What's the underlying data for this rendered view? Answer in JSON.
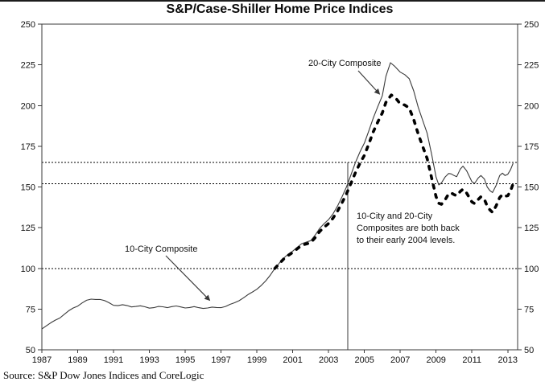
{
  "title": "S&P/Case-Shiller Home Price Indices",
  "source": "Source: S&P Dow Jones Indices and CoreLogic",
  "annotations": {
    "series_label_20": "20-City Composite",
    "series_label_10": "10-City Composite",
    "callout_lines": [
      "10-City and 20-City",
      "Composites are both back",
      "to their early 2004 levels."
    ]
  },
  "colors": {
    "line": "#000000",
    "axis": "#3a3a3a",
    "background": "#ffffff"
  },
  "chart_data": {
    "type": "line",
    "title": "S&P/Case-Shiller Home Price Indices",
    "xlabel": "",
    "ylabel": "",
    "grid": false,
    "legend_position": "annotated-arrows",
    "xlim": [
      1987,
      2013.55
    ],
    "ylim": [
      50,
      250
    ],
    "yticks": [
      50,
      75,
      100,
      125,
      150,
      175,
      200,
      225,
      250
    ],
    "xticks": [
      1987,
      1989,
      1991,
      1993,
      1995,
      1997,
      1999,
      2001,
      2003,
      2005,
      2007,
      2009,
      2011,
      2013
    ],
    "ref_lines_y": [
      165,
      152,
      100
    ],
    "marker": {
      "x": 2004.08,
      "top_value": 165
    },
    "series": [
      {
        "name": "10-City Composite",
        "style": "thin-solid",
        "points": [
          [
            1987.0,
            62.8
          ],
          [
            1987.25,
            64.7
          ],
          [
            1987.5,
            66.6
          ],
          [
            1987.75,
            68.2
          ],
          [
            1988.0,
            69.5
          ],
          [
            1988.25,
            71.8
          ],
          [
            1988.5,
            74.0
          ],
          [
            1988.75,
            75.7
          ],
          [
            1989.0,
            76.8
          ],
          [
            1989.25,
            78.8
          ],
          [
            1989.5,
            80.4
          ],
          [
            1989.75,
            81.1
          ],
          [
            1990.0,
            80.9
          ],
          [
            1990.25,
            80.9
          ],
          [
            1990.5,
            80.2
          ],
          [
            1990.75,
            78.9
          ],
          [
            1991.0,
            77.3
          ],
          [
            1991.25,
            77.1
          ],
          [
            1991.5,
            77.7
          ],
          [
            1991.75,
            77.2
          ],
          [
            1992.0,
            76.3
          ],
          [
            1992.25,
            76.6
          ],
          [
            1992.5,
            77.0
          ],
          [
            1992.75,
            76.4
          ],
          [
            1993.0,
            75.6
          ],
          [
            1993.25,
            75.9
          ],
          [
            1993.5,
            76.6
          ],
          [
            1993.75,
            76.4
          ],
          [
            1994.0,
            75.9
          ],
          [
            1994.25,
            76.5
          ],
          [
            1994.5,
            76.9
          ],
          [
            1994.75,
            76.3
          ],
          [
            1995.0,
            75.7
          ],
          [
            1995.25,
            76.0
          ],
          [
            1995.5,
            76.5
          ],
          [
            1995.75,
            75.9
          ],
          [
            1996.0,
            75.4
          ],
          [
            1996.25,
            75.7
          ],
          [
            1996.5,
            76.2
          ],
          [
            1996.75,
            76.0
          ],
          [
            1997.0,
            75.9
          ],
          [
            1997.25,
            76.6
          ],
          [
            1997.5,
            77.9
          ],
          [
            1997.75,
            78.9
          ],
          [
            1998.0,
            80.1
          ],
          [
            1998.25,
            81.9
          ],
          [
            1998.5,
            83.9
          ],
          [
            1998.75,
            85.5
          ],
          [
            1999.0,
            87.2
          ],
          [
            1999.25,
            89.6
          ],
          [
            1999.5,
            92.4
          ],
          [
            1999.75,
            95.9
          ],
          [
            2000.0,
            100.0
          ],
          [
            2000.25,
            103.2
          ],
          [
            2000.5,
            106.3
          ],
          [
            2000.75,
            108.8
          ],
          [
            2001.0,
            110.6
          ],
          [
            2001.25,
            112.9
          ],
          [
            2001.5,
            115.2
          ],
          [
            2001.75,
            116.1
          ],
          [
            2002.0,
            117.0
          ],
          [
            2002.25,
            120.4
          ],
          [
            2002.5,
            124.5
          ],
          [
            2002.75,
            127.5
          ],
          [
            2003.0,
            130.0
          ],
          [
            2003.25,
            133.5
          ],
          [
            2003.5,
            138.3
          ],
          [
            2003.75,
            144.0
          ],
          [
            2004.0,
            150.0
          ],
          [
            2004.25,
            157.5
          ],
          [
            2004.5,
            165.0
          ],
          [
            2004.75,
            171.5
          ],
          [
            2005.0,
            177.0
          ],
          [
            2005.25,
            184.5
          ],
          [
            2005.5,
            192.5
          ],
          [
            2005.75,
            199.5
          ],
          [
            2006.0,
            206.0
          ],
          [
            2006.2,
            218.0
          ],
          [
            2006.45,
            226.3
          ],
          [
            2006.7,
            224.0
          ],
          [
            2007.0,
            220.5
          ],
          [
            2007.25,
            219.0
          ],
          [
            2007.5,
            216.5
          ],
          [
            2007.75,
            209.0
          ],
          [
            2008.0,
            199.0
          ],
          [
            2008.25,
            191.0
          ],
          [
            2008.5,
            183.0
          ],
          [
            2008.75,
            170.0
          ],
          [
            2009.0,
            156.0
          ],
          [
            2009.15,
            151.3
          ],
          [
            2009.3,
            152.5
          ],
          [
            2009.5,
            156.0
          ],
          [
            2009.7,
            158.3
          ],
          [
            2009.85,
            158.0
          ],
          [
            2010.0,
            157.0
          ],
          [
            2010.15,
            156.3
          ],
          [
            2010.35,
            161.0
          ],
          [
            2010.5,
            162.8
          ],
          [
            2010.7,
            160.0
          ],
          [
            2011.0,
            153.2
          ],
          [
            2011.15,
            152.2
          ],
          [
            2011.35,
            155.5
          ],
          [
            2011.5,
            157.0
          ],
          [
            2011.7,
            154.8
          ],
          [
            2011.85,
            150.0
          ],
          [
            2012.0,
            147.8
          ],
          [
            2012.15,
            146.6
          ],
          [
            2012.35,
            151.0
          ],
          [
            2012.55,
            157.0
          ],
          [
            2012.7,
            158.5
          ],
          [
            2012.85,
            157.0
          ],
          [
            2013.0,
            157.8
          ],
          [
            2013.15,
            160.5
          ],
          [
            2013.3,
            164.5
          ]
        ]
      },
      {
        "name": "20-City Composite",
        "style": "thick-dashed",
        "points": [
          [
            2000.0,
            100.0
          ],
          [
            2000.25,
            102.9
          ],
          [
            2000.5,
            105.8
          ],
          [
            2000.75,
            108.0
          ],
          [
            2001.0,
            109.8
          ],
          [
            2001.25,
            112.0
          ],
          [
            2001.5,
            114.2
          ],
          [
            2001.75,
            115.0
          ],
          [
            2002.0,
            115.8
          ],
          [
            2002.25,
            118.9
          ],
          [
            2002.5,
            122.6
          ],
          [
            2002.75,
            125.3
          ],
          [
            2003.0,
            127.6
          ],
          [
            2003.25,
            130.9
          ],
          [
            2003.5,
            135.2
          ],
          [
            2003.75,
            140.3
          ],
          [
            2004.0,
            145.8
          ],
          [
            2004.25,
            152.3
          ],
          [
            2004.5,
            158.8
          ],
          [
            2004.75,
            164.5
          ],
          [
            2005.0,
            169.5
          ],
          [
            2005.25,
            176.5
          ],
          [
            2005.5,
            184.0
          ],
          [
            2005.75,
            190.0
          ],
          [
            2006.0,
            195.5
          ],
          [
            2006.2,
            202.0
          ],
          [
            2006.5,
            206.5
          ],
          [
            2006.75,
            204.5
          ],
          [
            2007.0,
            201.0
          ],
          [
            2007.25,
            200.3
          ],
          [
            2007.5,
            198.5
          ],
          [
            2007.75,
            191.5
          ],
          [
            2008.0,
            182.5
          ],
          [
            2008.25,
            175.0
          ],
          [
            2008.5,
            167.5
          ],
          [
            2008.75,
            155.5
          ],
          [
            2009.0,
            144.0
          ],
          [
            2009.15,
            140.0
          ],
          [
            2009.3,
            139.4
          ],
          [
            2009.5,
            142.0
          ],
          [
            2009.7,
            145.8
          ],
          [
            2009.85,
            146.3
          ],
          [
            2010.0,
            145.3
          ],
          [
            2010.15,
            144.6
          ],
          [
            2010.35,
            147.3
          ],
          [
            2010.5,
            148.6
          ],
          [
            2010.7,
            146.3
          ],
          [
            2011.0,
            140.8
          ],
          [
            2011.15,
            139.8
          ],
          [
            2011.35,
            142.3
          ],
          [
            2011.5,
            144.0
          ],
          [
            2011.7,
            142.3
          ],
          [
            2011.85,
            138.2
          ],
          [
            2012.0,
            136.0
          ],
          [
            2012.15,
            134.4
          ],
          [
            2012.35,
            138.4
          ],
          [
            2012.55,
            143.5
          ],
          [
            2012.7,
            145.3
          ],
          [
            2012.85,
            144.3
          ],
          [
            2013.0,
            144.6
          ],
          [
            2013.15,
            147.5
          ],
          [
            2013.3,
            152.0
          ]
        ]
      }
    ]
  }
}
